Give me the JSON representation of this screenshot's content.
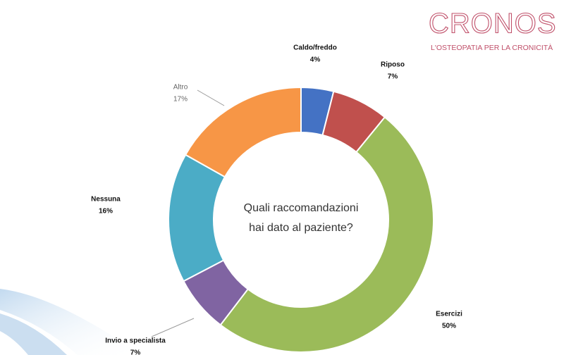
{
  "logo": {
    "name": "CRONOS",
    "tagline": "L'OSTEOPATIA PER LA CRONICITÀ"
  },
  "chart_data": {
    "type": "pie",
    "donut": true,
    "center_text": [
      "Quali raccomandazioni",
      "hai dato al paziente?"
    ],
    "categories": [
      "Caldo/freddo",
      "Riposo",
      "Esercizi",
      "Invio a specialista",
      "Nessuna",
      "Altro"
    ],
    "values": [
      4,
      7,
      50,
      7,
      16,
      17
    ],
    "value_labels": [
      "4%",
      "7%",
      "50%",
      "7%",
      "16%",
      "17%"
    ],
    "colors": [
      "#4472c4",
      "#c0504d",
      "#9bbb59",
      "#8064a2",
      "#4bacc6",
      "#f79646"
    ]
  }
}
